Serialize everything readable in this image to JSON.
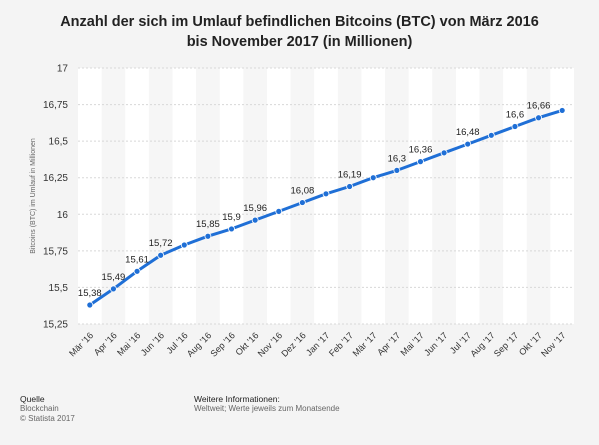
{
  "title_line1": "Anzahl der sich im Umlauf befindlichen Bitcoins (BTC) von März 2016",
  "title_line2": "bis November 2017 (in Millionen)",
  "chart_data": {
    "type": "line",
    "title": "Anzahl der sich im Umlauf befindlichen Bitcoins (BTC) von März 2016 bis November 2017 (in Millionen)",
    "xlabel": "",
    "ylabel": "Bitcoins (BTC) im Umlauf in Millionen",
    "categories": [
      "Mär '16",
      "Apr '16",
      "Mai '16",
      "Jun '16",
      "Jul '16",
      "Aug '16",
      "Sep '16",
      "Okt '16",
      "Nov '16",
      "Dez '16",
      "Jan '17",
      "Feb '17",
      "Mär '17",
      "Apr '17",
      "Mai '17",
      "Jun '17",
      "Jul '17",
      "Aug '17",
      "Sep '17",
      "Okt '17",
      "Nov '17"
    ],
    "values": [
      15.38,
      15.49,
      15.61,
      15.72,
      15.79,
      15.85,
      15.9,
      15.96,
      16.02,
      16.08,
      16.14,
      16.19,
      16.25,
      16.3,
      16.36,
      16.42,
      16.48,
      16.54,
      16.6,
      16.66,
      16.71
    ],
    "data_labels": {
      "0": "15,38",
      "1": "15,49",
      "2": "15,61",
      "3": "15,72",
      "5": "15,85",
      "6": "15,9",
      "7": "15,96",
      "9": "16,08",
      "11": "16,19",
      "13": "16,3",
      "14": "16,36",
      "16": "16,48",
      "18": "16,6",
      "19": "16,66"
    },
    "ylim": [
      15.25,
      17
    ],
    "yticks": [
      "15,25",
      "15,5",
      "15,75",
      "16",
      "16,25",
      "16,5",
      "16,75",
      "17"
    ],
    "grid": true,
    "color": "#1f6fd6"
  },
  "footer": {
    "source_heading": "Quelle",
    "source_name": "Blockchain",
    "copyright": "© Statista 2017",
    "info_heading": "Weitere Informationen:",
    "info_text": "Weltweit; Werte jeweils zum Monatsende"
  }
}
